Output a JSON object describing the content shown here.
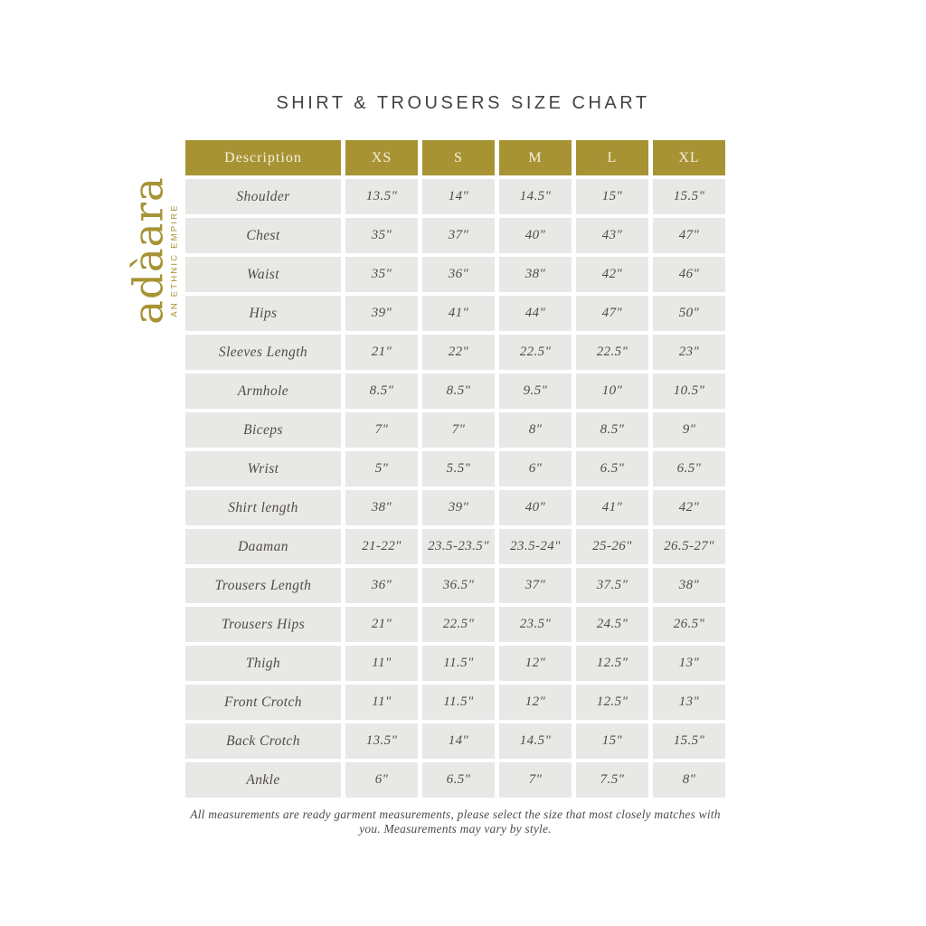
{
  "page": {
    "title": "SHIRT & TROUSERS SIZE CHART",
    "footer_note": "All measurements are ready garment measurements, please select the size that most closely matches with you. Measurements may vary by style."
  },
  "logo": {
    "name": "adàara",
    "tagline": "AN ETHNIC EMPIRE"
  },
  "colors": {
    "gold": "#a79334",
    "cell_bg": "#e8e8e6",
    "header_text": "#f5f0dc",
    "cell_text": "#514c48",
    "title_text": "#474140"
  },
  "chart_data": {
    "type": "table",
    "title": "SHIRT & TROUSERS SIZE CHART",
    "columns": [
      "Description",
      "XS",
      "S",
      "M",
      "L",
      "XL"
    ],
    "rows": [
      {
        "label": "Shoulder",
        "values": [
          "13.5\"",
          "14\"",
          "14.5\"",
          "15\"",
          "15.5\""
        ]
      },
      {
        "label": "Chest",
        "values": [
          "35\"",
          "37\"",
          "40\"",
          "43\"",
          "47\""
        ]
      },
      {
        "label": "Waist",
        "values": [
          "35\"",
          "36\"",
          "38\"",
          "42\"",
          "46\""
        ]
      },
      {
        "label": "Hips",
        "values": [
          "39\"",
          "41\"",
          "44\"",
          "47\"",
          "50\""
        ]
      },
      {
        "label": "Sleeves Length",
        "values": [
          "21\"",
          "22\"",
          "22.5\"",
          "22.5\"",
          "23\""
        ]
      },
      {
        "label": "Armhole",
        "values": [
          "8.5\"",
          "8.5\"",
          "9.5\"",
          "10\"",
          "10.5\""
        ]
      },
      {
        "label": "Biceps",
        "values": [
          "7\"",
          "7\"",
          "8\"",
          "8.5\"",
          "9\""
        ]
      },
      {
        "label": "Wrist",
        "values": [
          "5\"",
          "5.5\"",
          "6\"",
          "6.5\"",
          "6.5\""
        ]
      },
      {
        "label": "Shirt length",
        "values": [
          "38\"",
          "39\"",
          "40\"",
          "41\"",
          "42\""
        ]
      },
      {
        "label": "Daaman",
        "values": [
          "21-22\"",
          "23.5-23.5\"",
          "23.5-24\"",
          "25-26\"",
          "26.5-27\""
        ]
      },
      {
        "label": "Trousers Length",
        "values": [
          "36\"",
          "36.5\"",
          "37\"",
          "37.5\"",
          "38\""
        ]
      },
      {
        "label": "Trousers Hips",
        "values": [
          "21\"",
          "22.5\"",
          "23.5\"",
          "24.5\"",
          "26.5\""
        ]
      },
      {
        "label": "Thigh",
        "values": [
          "11\"",
          "11.5\"",
          "12\"",
          "12.5\"",
          "13\""
        ]
      },
      {
        "label": "Front Crotch",
        "values": [
          "11\"",
          "11.5\"",
          "12\"",
          "12.5\"",
          "13\""
        ]
      },
      {
        "label": "Back Crotch",
        "values": [
          "13.5\"",
          "14\"",
          "14.5\"",
          "15\"",
          "15.5\""
        ]
      },
      {
        "label": "Ankle",
        "values": [
          "6\"",
          "6.5\"",
          "7\"",
          "7.5\"",
          "8\""
        ]
      }
    ]
  }
}
